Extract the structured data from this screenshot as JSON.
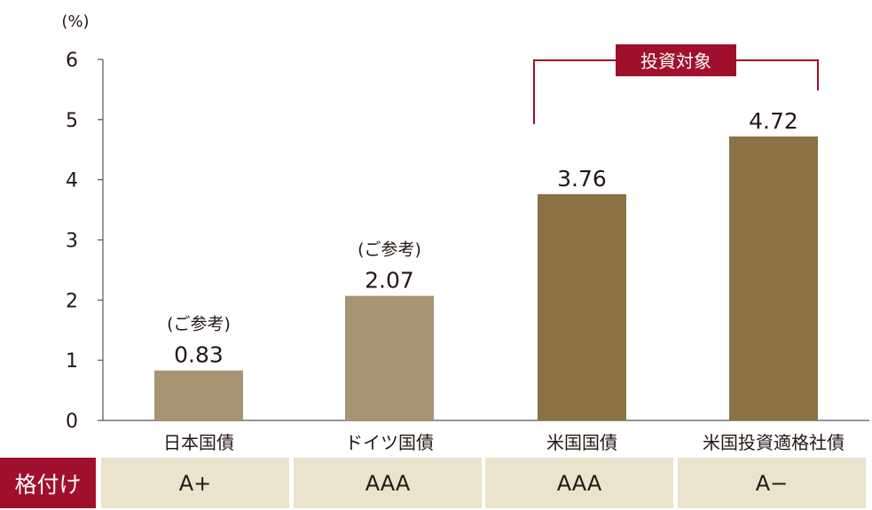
{
  "chart_data": {
    "type": "bar",
    "unit_label": "(%)",
    "categories": [
      "日本国債",
      "ドイツ国債",
      "米国国債",
      "米国投資適格社債"
    ],
    "values": [
      0.83,
      2.07,
      3.76,
      4.72
    ],
    "value_labels": [
      "0.83",
      "2.07",
      "3.76",
      "4.72"
    ],
    "reference_notes": [
      "(ご参考)",
      "(ご参考)",
      "",
      ""
    ],
    "ylim": [
      0,
      6
    ],
    "yticks": [
      0,
      1,
      2,
      3,
      4,
      5,
      6
    ],
    "grid": false,
    "highlight_bracket": {
      "label": "投資対象",
      "from_category": 2,
      "to_category": 3
    },
    "colors": {
      "reference_bar": "#a69472",
      "target_bar": "#8a7244",
      "accent": "#a0102c",
      "rating_bg": "#ece3cc"
    }
  },
  "ratings": {
    "label": "格付け",
    "values": [
      "A+",
      "AAA",
      "AAA",
      "A−"
    ]
  }
}
